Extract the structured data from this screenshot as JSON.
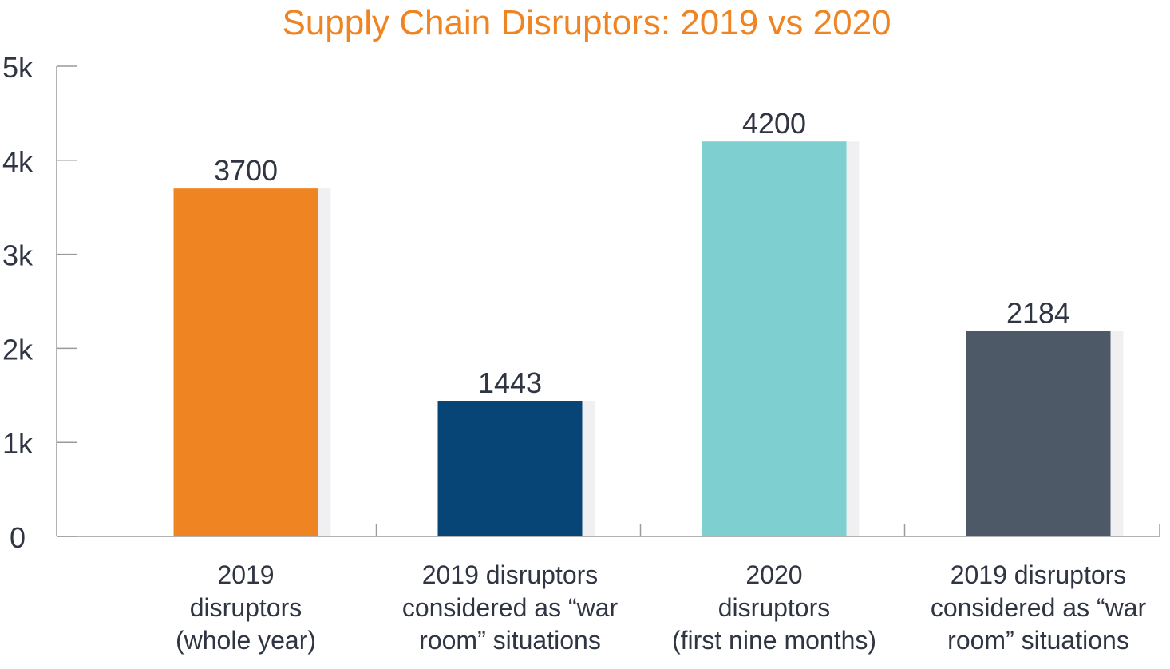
{
  "chart_data": {
    "type": "bar",
    "title": "Supply Chain Disruptors: 2019 vs 2020",
    "xlabel": "",
    "ylabel": "",
    "ylim": [
      0,
      5000
    ],
    "yticks": [
      0,
      1000,
      2000,
      3000,
      4000,
      5000
    ],
    "ytick_labels": [
      "0",
      "1k",
      "2k",
      "3k",
      "4k",
      "5k"
    ],
    "grid": false,
    "categories": [
      [
        "2019",
        "disruptors",
        "(whole year)"
      ],
      [
        "2019 disruptors",
        "considered as “war",
        "room” situations"
      ],
      [
        "2020",
        "disruptors",
        "(first nine months)"
      ],
      [
        "2019 disruptors",
        "considered as “war",
        "room” situations"
      ]
    ],
    "values": [
      3700,
      1443,
      4200,
      2184
    ],
    "data_labels": [
      "3700",
      "1443",
      "4200",
      "2184"
    ],
    "colors": [
      "#ef8423",
      "#084577",
      "#7dd0cf",
      "#4e5967"
    ],
    "shadow_color": "#f0f0f2",
    "axis_color": "#9a9a9a"
  }
}
